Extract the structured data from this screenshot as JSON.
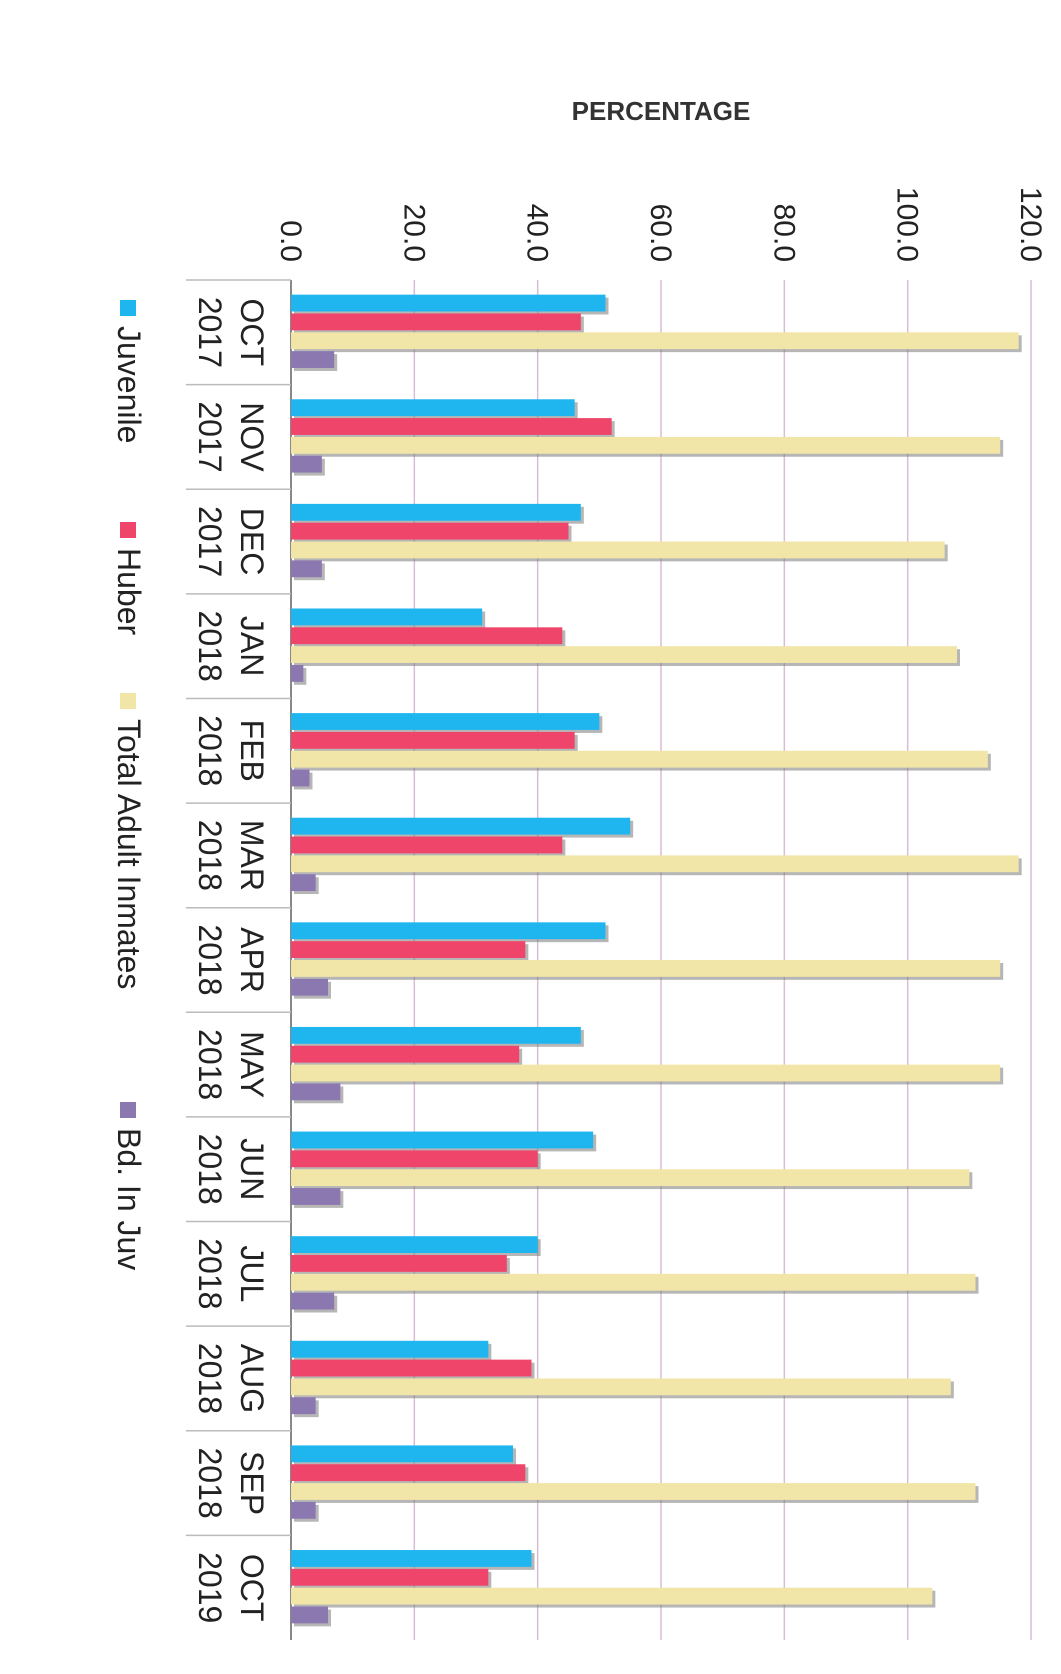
{
  "chart_data": {
    "type": "bar",
    "orientation": "vertical bars, page rotated 90 degrees clockwise",
    "ylabel": "PERCENTAGE",
    "ylim": [
      0,
      120
    ],
    "yticks": [
      "0.0",
      "20.0",
      "40.0",
      "60.0",
      "80.0",
      "100.0",
      "120.0"
    ],
    "grid": true,
    "legend_position": "bottom",
    "categories": [
      {
        "month": "OCT",
        "year": "2017"
      },
      {
        "month": "NOV",
        "year": "2017"
      },
      {
        "month": "DEC",
        "year": "2017"
      },
      {
        "month": "JAN",
        "year": "2018"
      },
      {
        "month": "FEB",
        "year": "2018"
      },
      {
        "month": "MAR",
        "year": "2018"
      },
      {
        "month": "APR",
        "year": "2018"
      },
      {
        "month": "MAY",
        "year": "2018"
      },
      {
        "month": "JUN",
        "year": "2018"
      },
      {
        "month": "JUL",
        "year": "2018"
      },
      {
        "month": "AUG",
        "year": "2018"
      },
      {
        "month": "SEP",
        "year": "2018"
      },
      {
        "month": "OCT",
        "year": "2019"
      }
    ],
    "series": [
      {
        "name": "Juvenile",
        "color": "#1fb6f0",
        "values": [
          51,
          46,
          47,
          31,
          50,
          55,
          51,
          47,
          49,
          40,
          32,
          36,
          39
        ]
      },
      {
        "name": "Huber",
        "color": "#f0456a",
        "values": [
          47,
          52,
          45,
          44,
          46,
          44,
          38,
          37,
          40,
          35,
          39,
          38,
          32
        ]
      },
      {
        "name": "Total Adult Inmates",
        "color": "#f1e6a8",
        "values": [
          118,
          115,
          106,
          108,
          113,
          118,
          115,
          115,
          110,
          111,
          107,
          111,
          104
        ]
      },
      {
        "name": "Bd. In Juv",
        "color": "#8c78b0",
        "values": [
          7,
          5,
          5,
          2,
          3,
          4,
          6,
          8,
          8,
          7,
          4,
          4,
          6
        ]
      }
    ]
  }
}
